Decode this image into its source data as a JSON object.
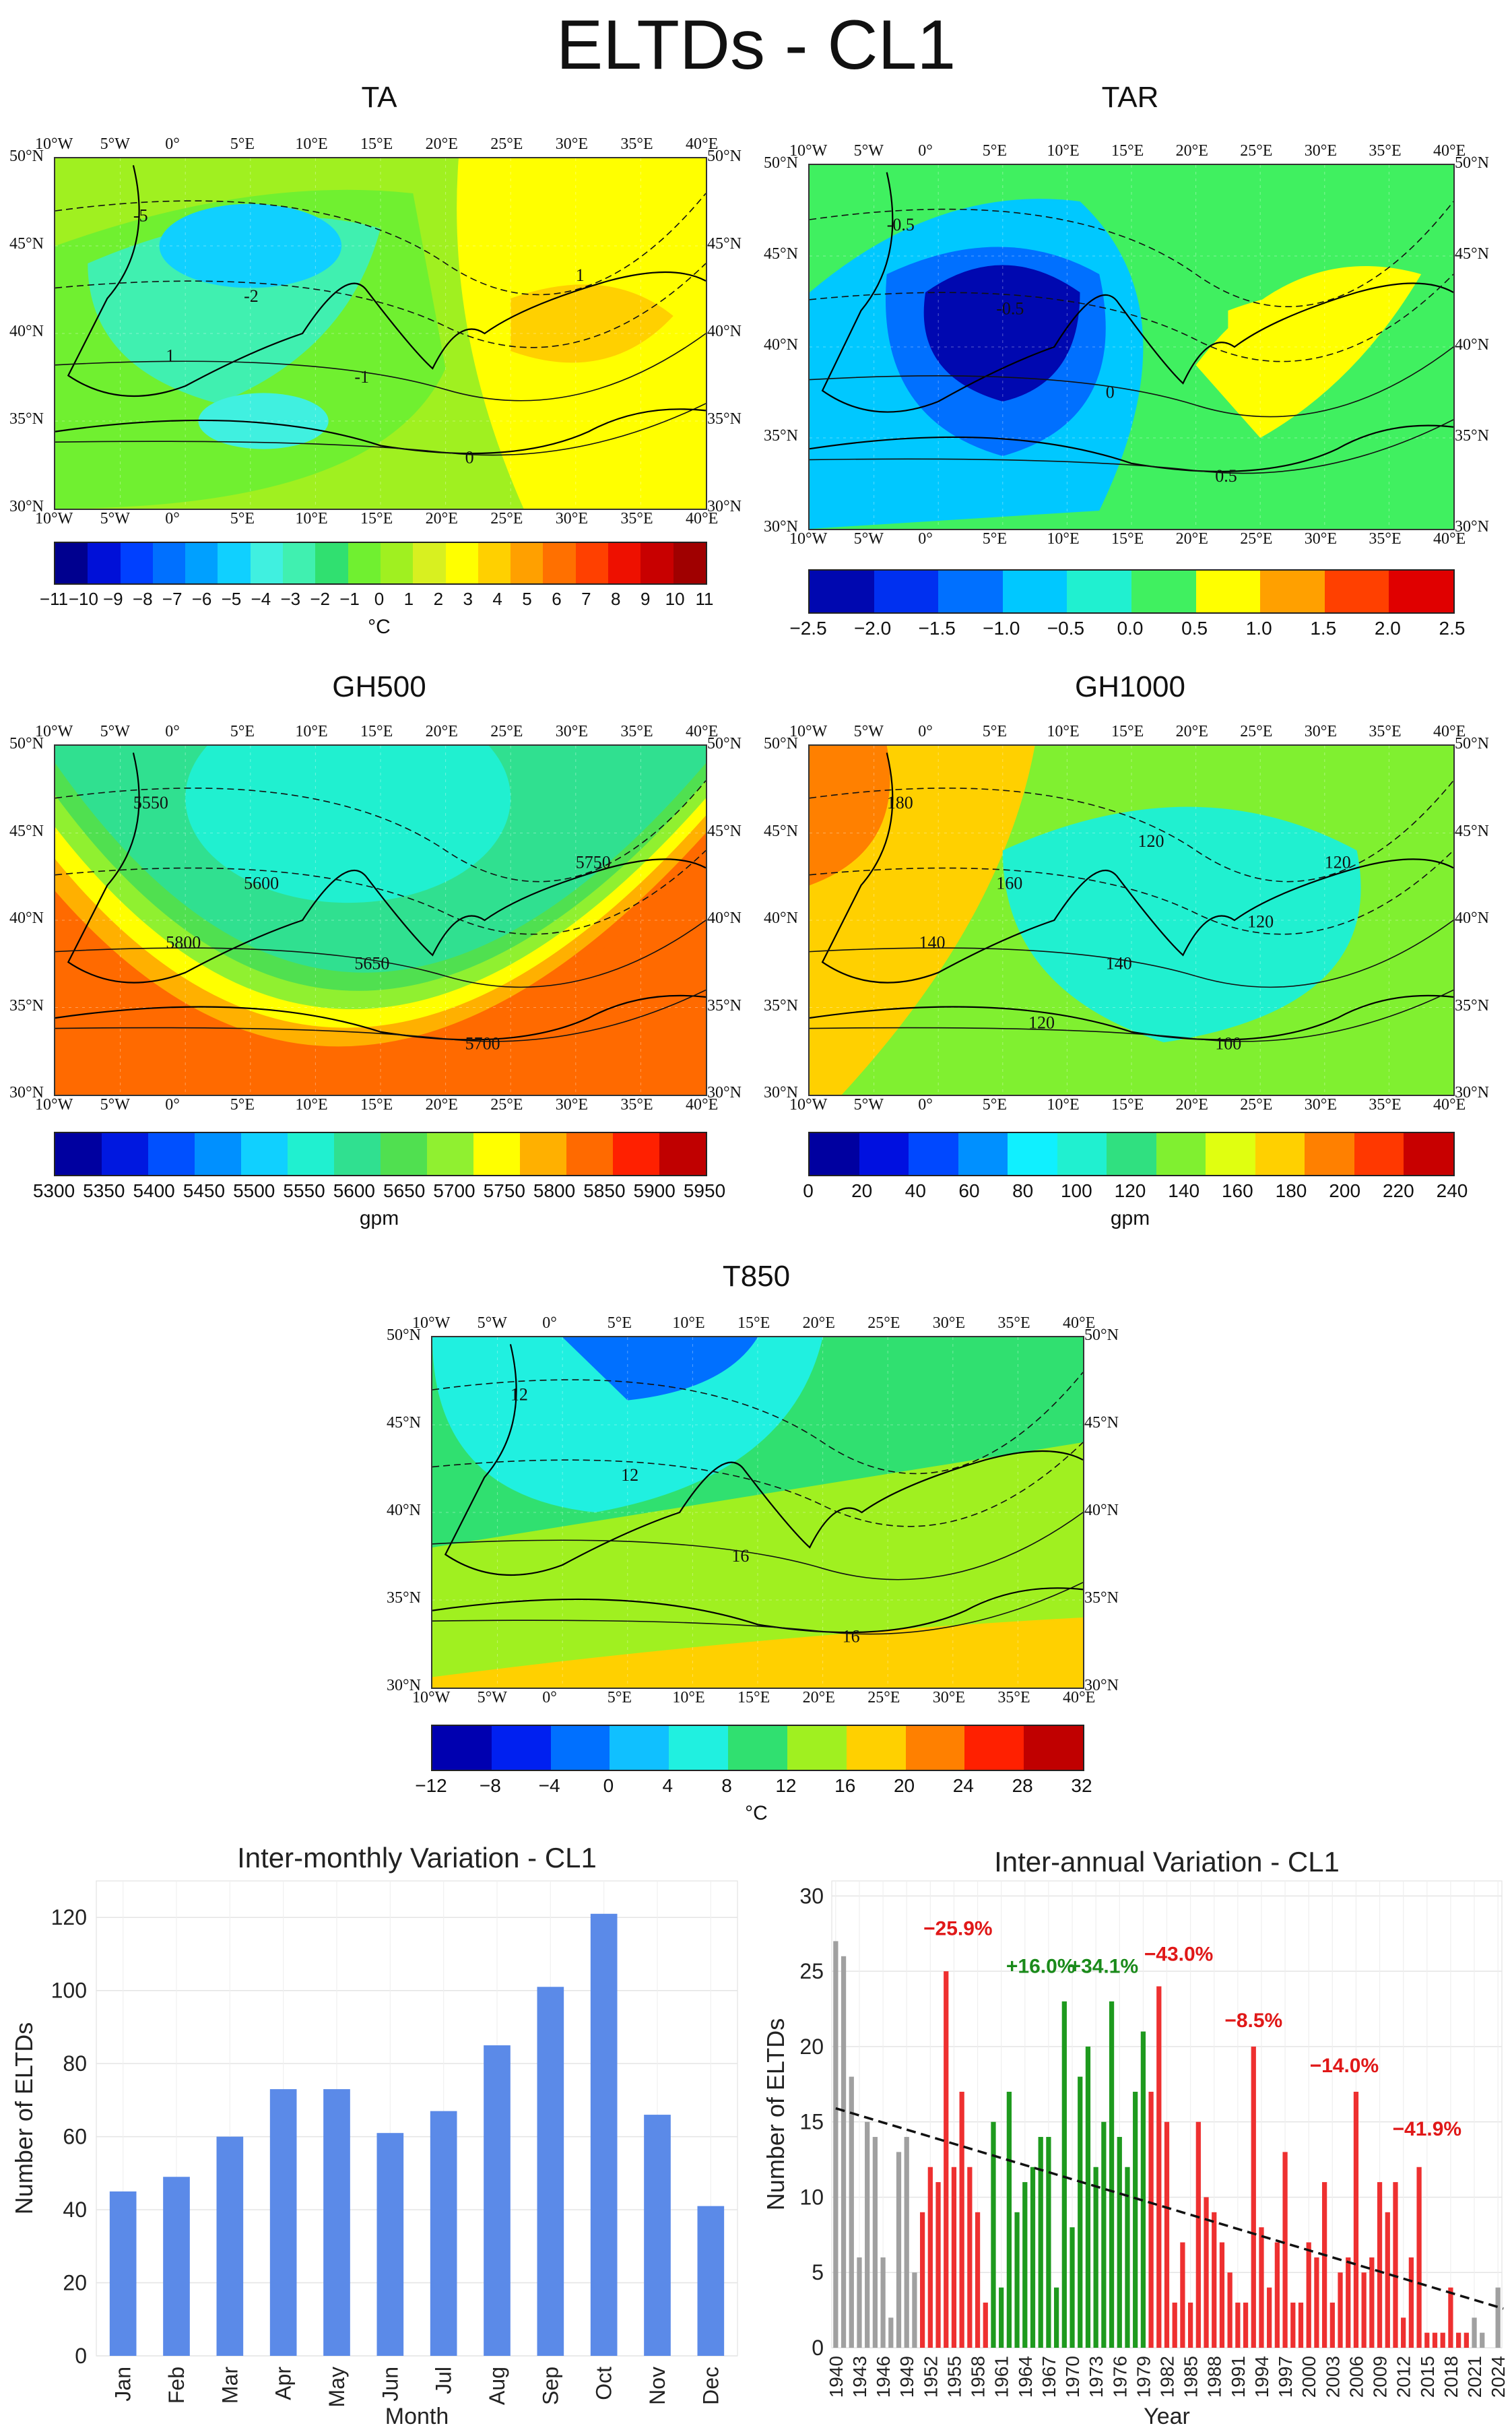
{
  "title": "ELTDs - CL1",
  "lon_labels": [
    "10°W",
    "5°W",
    "0°",
    "5°E",
    "10°E",
    "15°E",
    "20°E",
    "25°E",
    "30°E",
    "35°E",
    "40°E"
  ],
  "lat_labels": [
    "50°N",
    "45°N",
    "40°N",
    "35°N",
    "30°N"
  ],
  "maps": [
    {
      "id": "ta",
      "title": "TA",
      "colors": [
        "#00008f",
        "#0010d8",
        "#0040ff",
        "#0070ff",
        "#00a0ff",
        "#10d0ff",
        "#40f0e0",
        "#40f0b0",
        "#30e070",
        "#70f030",
        "#a0f020",
        "#d8f020",
        "#ffff00",
        "#ffd000",
        "#ffa000",
        "#ff7000",
        "#ff4000",
        "#ee1000",
        "#c80000",
        "#a00000"
      ],
      "ticks": [
        "−11",
        "−10",
        "−9",
        "−8",
        "−7",
        "−6",
        "−5",
        "−4",
        "−3",
        "−2",
        "−1",
        "0",
        "1",
        "2",
        "3",
        "4",
        "5",
        "6",
        "7",
        "8",
        "9",
        "10",
        "11"
      ],
      "unit": "°C",
      "contour_labels": [
        "-5",
        "-2",
        "-1",
        "0",
        "1",
        "1"
      ]
    },
    {
      "id": "tar",
      "title": "TAR",
      "colors": [
        "#0008b0",
        "#0030f0",
        "#0070ff",
        "#00c8ff",
        "#20f0d0",
        "#40f060",
        "#ffff00",
        "#ffa000",
        "#ff4000",
        "#e00000"
      ],
      "ticks": [
        "−2.5",
        "−2.0",
        "−1.5",
        "−1.0",
        "−0.5",
        "0.0",
        "0.5",
        "1.0",
        "1.5",
        "2.0",
        "2.5"
      ],
      "unit": "",
      "contour_labels": [
        "-0.5",
        "-0.5",
        "0",
        "0.5"
      ]
    },
    {
      "id": "gh500",
      "title": "GH500",
      "colors": [
        "#0000a0",
        "#0018e0",
        "#0050ff",
        "#0090ff",
        "#10d0ff",
        "#20f0d0",
        "#30e090",
        "#50e050",
        "#90f030",
        "#ffff00",
        "#ffb000",
        "#ff6a00",
        "#ff2000",
        "#c00000"
      ],
      "ticks": [
        "5300",
        "5350",
        "5400",
        "5450",
        "5500",
        "5550",
        "5600",
        "5650",
        "5700",
        "5750",
        "5800",
        "5850",
        "5900",
        "5950"
      ],
      "unit": "gpm",
      "contour_labels": [
        "5550",
        "5600",
        "5650",
        "5700",
        "5750",
        "5800"
      ]
    },
    {
      "id": "gh1000",
      "title": "GH1000",
      "colors": [
        "#0000a0",
        "#0010e0",
        "#0048ff",
        "#0090ff",
        "#10f0ff",
        "#20f0d0",
        "#30e080",
        "#80f030",
        "#e0ff10",
        "#ffd000",
        "#ff8000",
        "#ff3800",
        "#c80000"
      ],
      "ticks": [
        "0",
        "20",
        "40",
        "60",
        "80",
        "100",
        "120",
        "140",
        "160",
        "180",
        "200",
        "220",
        "240"
      ],
      "unit": "gpm",
      "contour_labels": [
        "180",
        "160",
        "140",
        "100",
        "120",
        "140",
        "120",
        "120",
        "120"
      ]
    },
    {
      "id": "t850",
      "title": "T850",
      "colors": [
        "#0000b0",
        "#0020f0",
        "#0070ff",
        "#10c0ff",
        "#20f0e0",
        "#30e070",
        "#a0f020",
        "#ffd000",
        "#ff8000",
        "#ff2000",
        "#c00000"
      ],
      "ticks": [
        "−12",
        "−8",
        "−4",
        "0",
        "4",
        "8",
        "12",
        "16",
        "20",
        "24",
        "28",
        "32"
      ],
      "unit": "°C",
      "contour_labels": [
        "12",
        "12",
        "16",
        "16"
      ]
    }
  ],
  "monthly": {
    "chart_data": {
      "type": "bar",
      "title": "Inter-monthly Variation - CL1",
      "xlabel": "Month",
      "ylabel": "Number of ELTDs",
      "categories": [
        "Jan",
        "Feb",
        "Mar",
        "Apr",
        "May",
        "Jun",
        "Jul",
        "Aug",
        "Sep",
        "Oct",
        "Nov",
        "Dec"
      ],
      "values": [
        45,
        49,
        60,
        73,
        73,
        61,
        67,
        85,
        101,
        121,
        66,
        41
      ],
      "ylim": [
        0,
        130
      ],
      "yticks": [
        0,
        20,
        40,
        60,
        80,
        100,
        120
      ],
      "color": "#5b8ae8"
    }
  },
  "annual": {
    "chart_data": {
      "type": "bar",
      "title": "Inter-annual Variation - CL1",
      "xlabel": "Year",
      "ylabel": "Number of ELTDs",
      "x_start": 1940,
      "values": [
        27,
        26,
        18,
        6,
        15,
        14,
        6,
        2,
        13,
        14,
        5,
        9,
        12,
        11,
        25,
        12,
        17,
        12,
        9,
        3,
        15,
        4,
        17,
        9,
        11,
        12,
        14,
        14,
        4,
        23,
        8,
        18,
        20,
        12,
        15,
        23,
        14,
        12,
        17,
        21,
        17,
        24,
        15,
        3,
        7,
        3,
        15,
        10,
        9,
        7,
        5,
        3,
        3,
        20,
        8,
        4,
        7,
        13,
        3,
        3,
        7,
        6,
        11,
        3,
        5,
        6,
        17,
        5,
        6,
        11,
        9,
        11,
        2,
        6,
        12,
        1,
        1,
        1,
        4,
        1,
        1,
        2,
        1,
        0,
        4
      ],
      "segments": [
        {
          "start": 1940,
          "end": 1950,
          "color": "#a0a0a0"
        },
        {
          "start": 1951,
          "end": 1959,
          "color": "#ee3030"
        },
        {
          "start": 1960,
          "end": 1979,
          "color": "#1e9a1e"
        },
        {
          "start": 1980,
          "end": 2020,
          "color": "#ee3030"
        },
        {
          "start": 2021,
          "end": 2024,
          "color": "#a0a0a0"
        }
      ],
      "annotations": [
        {
          "text": "−25.9%",
          "x": 1955.5,
          "y": 27.4,
          "color": "#e01818"
        },
        {
          "text": "+16.0%",
          "x": 1966,
          "y": 24.9,
          "color": "#1a8a1a"
        },
        {
          "text": "+34.1%",
          "x": 1974,
          "y": 24.9,
          "color": "#1a8a1a"
        },
        {
          "text": "−43.0%",
          "x": 1983.5,
          "y": 25.7,
          "color": "#e01818"
        },
        {
          "text": "−8.5%",
          "x": 1993,
          "y": 21.3,
          "color": "#e01818"
        },
        {
          "text": "−14.0%",
          "x": 2004.5,
          "y": 18.3,
          "color": "#e01818"
        },
        {
          "text": "−41.9%",
          "x": 2015,
          "y": 14.1,
          "color": "#e01818"
        }
      ],
      "trend": {
        "x0": 1940,
        "y0": 15.9,
        "x1": 2024,
        "y1": 2.6
      },
      "ylim": [
        0,
        31
      ],
      "yticks": [
        0,
        5,
        10,
        15,
        20,
        25,
        30
      ],
      "xticks": [
        1940,
        1943,
        1946,
        1949,
        1952,
        1955,
        1958,
        1961,
        1964,
        1967,
        1970,
        1973,
        1976,
        1979,
        1982,
        1985,
        1988,
        1991,
        1994,
        1997,
        2000,
        2003,
        2006,
        2009,
        2012,
        2015,
        2018,
        2021,
        2024
      ]
    }
  }
}
